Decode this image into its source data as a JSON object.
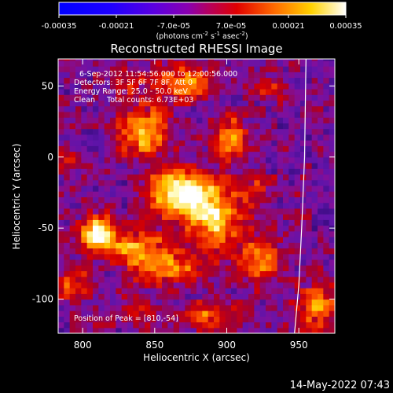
{
  "colorbar": {
    "tick_labels": [
      "-0.00035",
      "-0.00021",
      "-7.0e-05",
      "7.0e-05",
      "0.00021",
      "0.00035"
    ],
    "tick_values": [
      -0.00035,
      -0.00021,
      -7e-05,
      7e-05,
      0.00021,
      0.00035
    ],
    "range": [
      -0.00035,
      0.00035
    ],
    "unit_label_parts": [
      "(photons cm",
      "-2",
      " s",
      "-1",
      " asec",
      "-2",
      ")"
    ]
  },
  "chart_data": {
    "type": "heatmap",
    "title": "Reconstructed RHESSI Image",
    "xlabel": "Heliocentric X (arcsec)",
    "ylabel": "Heliocentric Y (arcsec)",
    "xlim": [
      783,
      975
    ],
    "ylim": [
      -124,
      69
    ],
    "xticks": [
      800,
      850,
      900,
      950
    ],
    "yticks": [
      50,
      0,
      -50,
      -100
    ],
    "annotation_lines": [
      "6-Sep-2012 11:54:56.000 to 12:00:56.000",
      "Detectors: 3F 5F 6F 7F 8F, Att 0",
      "Energy Range: 25.0 - 50.0 keV",
      "Clean     Total counts: 6.73E+03"
    ],
    "peak_label": "Position of Peak = [810,-54]",
    "peak_position": [
      810,
      -54
    ],
    "limb_arc": [
      [
        947,
        -124
      ],
      [
        950,
        -90
      ],
      [
        952,
        -50
      ],
      [
        954,
        0
      ],
      [
        955,
        69
      ]
    ],
    "sources": [
      {
        "x": 867,
        "y": -25,
        "peak": 1.0,
        "sx": 14,
        "sy": 12
      },
      {
        "x": 810,
        "y": -54,
        "peak": 0.95,
        "sx": 9,
        "sy": 8
      },
      {
        "x": 842,
        "y": 18,
        "peak": 0.7,
        "sx": 13,
        "sy": 12
      },
      {
        "x": 893,
        "y": -42,
        "peak": 0.75,
        "sx": 12,
        "sy": 16
      },
      {
        "x": 903,
        "y": 14,
        "peak": 0.55,
        "sx": 9,
        "sy": 10
      },
      {
        "x": 838,
        "y": -64,
        "peak": 0.55,
        "sx": 14,
        "sy": 10
      },
      {
        "x": 871,
        "y": 52,
        "peak": 0.5,
        "sx": 16,
        "sy": 9
      },
      {
        "x": 923,
        "y": -72,
        "peak": 0.5,
        "sx": 10,
        "sy": 12
      },
      {
        "x": 862,
        "y": -78,
        "peak": 0.45,
        "sx": 18,
        "sy": 9
      },
      {
        "x": 888,
        "y": -112,
        "peak": 0.45,
        "sx": 16,
        "sy": 7
      },
      {
        "x": 963,
        "y": -105,
        "peak": 0.5,
        "sx": 10,
        "sy": 12
      },
      {
        "x": 792,
        "y": -88,
        "peak": 0.4,
        "sx": 8,
        "sy": 10
      },
      {
        "x": 930,
        "y": 48,
        "peak": 0.3,
        "sx": 7,
        "sy": 8
      },
      {
        "x": 830,
        "y": 55,
        "peak": 0.3,
        "sx": 8,
        "sy": 8
      },
      {
        "x": 790,
        "y": -5,
        "peak": 0.25,
        "sx": 6,
        "sy": 10
      },
      {
        "x": 920,
        "y": -20,
        "peak": 0.3,
        "sx": 8,
        "sy": 8
      },
      {
        "x": 840,
        "y": -110,
        "peak": 0.3,
        "sx": 9,
        "sy": 7
      }
    ]
  },
  "timestamp": "14-May-2022 07:43"
}
